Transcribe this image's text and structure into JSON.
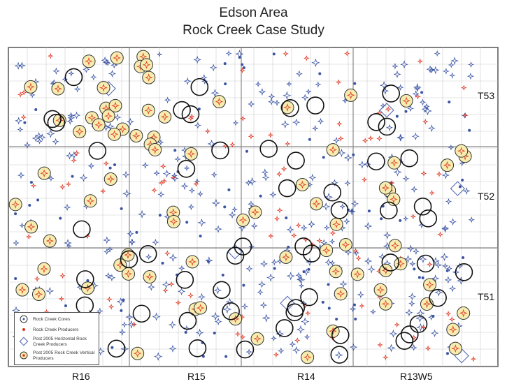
{
  "header": {
    "title": "Edson Area",
    "subtitle": "Rock Creek Case Study"
  },
  "ranges": [
    "R16",
    "R15",
    "R14",
    "R13W5"
  ],
  "townships": [
    "T53",
    "T52",
    "T51"
  ],
  "legend": [
    "Rock Creek Cores",
    "Rock Creek Producers",
    "Post 2005 Horizontal Rock Creek Producers",
    "Post 2005 Rock Creek Vertical Producers"
  ]
}
